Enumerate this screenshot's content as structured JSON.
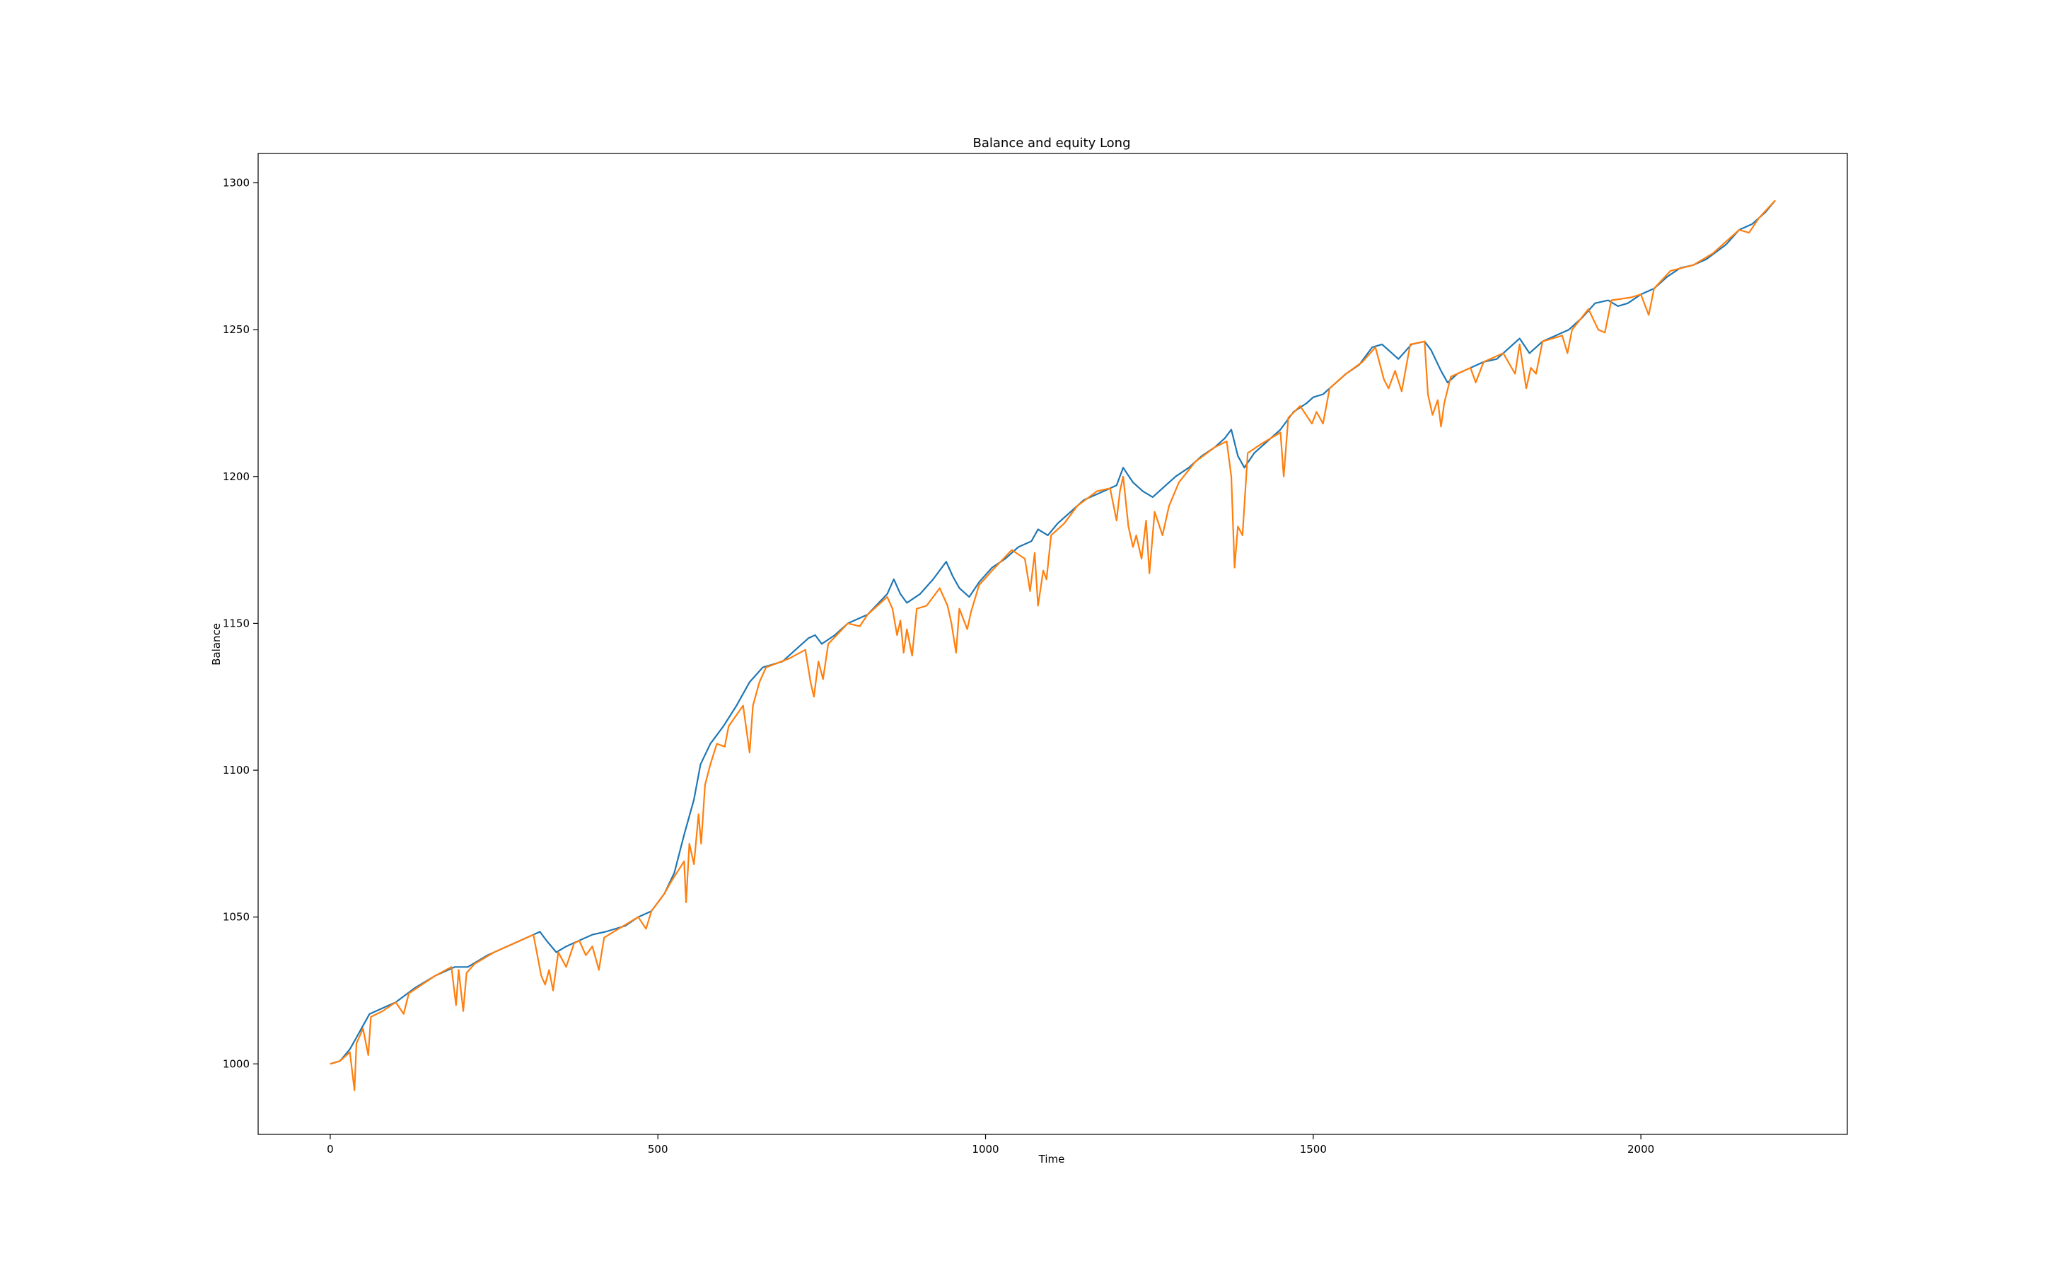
{
  "chart_data": {
    "type": "line",
    "title": "Balance and equity Long",
    "xlabel": "Time",
    "ylabel": "Balance",
    "xlim": [
      -110,
      2315
    ],
    "ylim": [
      976,
      1310
    ],
    "x_ticks": [
      0,
      500,
      1000,
      1500,
      2000
    ],
    "y_ticks": [
      1000,
      1050,
      1100,
      1150,
      1200,
      1250,
      1300
    ],
    "grid": false,
    "legend": "none",
    "series": [
      {
        "color": "#1f77b4",
        "points": [
          [
            0,
            1000
          ],
          [
            15,
            1001
          ],
          [
            30,
            1005
          ],
          [
            40,
            1009
          ],
          [
            60,
            1017
          ],
          [
            100,
            1021
          ],
          [
            130,
            1026
          ],
          [
            160,
            1030
          ],
          [
            190,
            1033
          ],
          [
            210,
            1033
          ],
          [
            240,
            1037
          ],
          [
            270,
            1040
          ],
          [
            300,
            1043
          ],
          [
            320,
            1045
          ],
          [
            330,
            1042
          ],
          [
            345,
            1038
          ],
          [
            360,
            1040
          ],
          [
            380,
            1042
          ],
          [
            400,
            1044
          ],
          [
            420,
            1045
          ],
          [
            450,
            1047
          ],
          [
            470,
            1050
          ],
          [
            490,
            1052
          ],
          [
            510,
            1058
          ],
          [
            525,
            1065
          ],
          [
            540,
            1078
          ],
          [
            555,
            1090
          ],
          [
            565,
            1102
          ],
          [
            580,
            1109
          ],
          [
            600,
            1115
          ],
          [
            620,
            1122
          ],
          [
            640,
            1130
          ],
          [
            660,
            1135
          ],
          [
            690,
            1137
          ],
          [
            710,
            1141
          ],
          [
            730,
            1145
          ],
          [
            740,
            1146
          ],
          [
            750,
            1143
          ],
          [
            770,
            1146
          ],
          [
            790,
            1150
          ],
          [
            820,
            1153
          ],
          [
            850,
            1160
          ],
          [
            860,
            1165
          ],
          [
            870,
            1160
          ],
          [
            880,
            1157
          ],
          [
            900,
            1160
          ],
          [
            920,
            1165
          ],
          [
            940,
            1171
          ],
          [
            950,
            1166
          ],
          [
            960,
            1162
          ],
          [
            975,
            1159
          ],
          [
            990,
            1164
          ],
          [
            1010,
            1169
          ],
          [
            1030,
            1172
          ],
          [
            1050,
            1176
          ],
          [
            1070,
            1178
          ],
          [
            1080,
            1182
          ],
          [
            1095,
            1180
          ],
          [
            1110,
            1184
          ],
          [
            1130,
            1188
          ],
          [
            1150,
            1192
          ],
          [
            1180,
            1195
          ],
          [
            1200,
            1197
          ],
          [
            1210,
            1203
          ],
          [
            1225,
            1198
          ],
          [
            1240,
            1195
          ],
          [
            1255,
            1193
          ],
          [
            1270,
            1196
          ],
          [
            1290,
            1200
          ],
          [
            1310,
            1203
          ],
          [
            1330,
            1207
          ],
          [
            1350,
            1210
          ],
          [
            1365,
            1213
          ],
          [
            1375,
            1216
          ],
          [
            1385,
            1207
          ],
          [
            1395,
            1203
          ],
          [
            1410,
            1208
          ],
          [
            1430,
            1212
          ],
          [
            1450,
            1216
          ],
          [
            1470,
            1222
          ],
          [
            1490,
            1225
          ],
          [
            1500,
            1227
          ],
          [
            1515,
            1228
          ],
          [
            1530,
            1231
          ],
          [
            1550,
            1235
          ],
          [
            1570,
            1238
          ],
          [
            1590,
            1244
          ],
          [
            1605,
            1245
          ],
          [
            1615,
            1243
          ],
          [
            1630,
            1240
          ],
          [
            1650,
            1245
          ],
          [
            1670,
            1246
          ],
          [
            1680,
            1243
          ],
          [
            1695,
            1236
          ],
          [
            1705,
            1232
          ],
          [
            1720,
            1235
          ],
          [
            1740,
            1237
          ],
          [
            1760,
            1239
          ],
          [
            1780,
            1240
          ],
          [
            1800,
            1244
          ],
          [
            1815,
            1247
          ],
          [
            1830,
            1242
          ],
          [
            1850,
            1246
          ],
          [
            1870,
            1248
          ],
          [
            1890,
            1250
          ],
          [
            1910,
            1254
          ],
          [
            1930,
            1259
          ],
          [
            1950,
            1260
          ],
          [
            1965,
            1258
          ],
          [
            1980,
            1259
          ],
          [
            2000,
            1262
          ],
          [
            2020,
            1264
          ],
          [
            2040,
            1268
          ],
          [
            2060,
            1271
          ],
          [
            2080,
            1272
          ],
          [
            2100,
            1274
          ],
          [
            2130,
            1279
          ],
          [
            2150,
            1284
          ],
          [
            2170,
            1286
          ],
          [
            2190,
            1290
          ],
          [
            2205,
            1294
          ]
        ]
      },
      {
        "color": "#ff7f0e",
        "points": [
          [
            0,
            1000
          ],
          [
            15,
            1001
          ],
          [
            30,
            1004
          ],
          [
            37,
            991
          ],
          [
            40,
            1007
          ],
          [
            50,
            1012
          ],
          [
            58,
            1003
          ],
          [
            62,
            1016
          ],
          [
            80,
            1018
          ],
          [
            100,
            1021
          ],
          [
            112,
            1017
          ],
          [
            120,
            1024
          ],
          [
            140,
            1027
          ],
          [
            160,
            1030
          ],
          [
            185,
            1033
          ],
          [
            192,
            1020
          ],
          [
            196,
            1032
          ],
          [
            203,
            1018
          ],
          [
            208,
            1031
          ],
          [
            220,
            1034
          ],
          [
            250,
            1038
          ],
          [
            280,
            1041
          ],
          [
            310,
            1044
          ],
          [
            322,
            1030
          ],
          [
            328,
            1027
          ],
          [
            334,
            1032
          ],
          [
            340,
            1025
          ],
          [
            348,
            1038
          ],
          [
            360,
            1033
          ],
          [
            372,
            1041
          ],
          [
            380,
            1042
          ],
          [
            390,
            1037
          ],
          [
            400,
            1040
          ],
          [
            410,
            1032
          ],
          [
            418,
            1043
          ],
          [
            440,
            1046
          ],
          [
            470,
            1050
          ],
          [
            482,
            1046
          ],
          [
            490,
            1052
          ],
          [
            510,
            1058
          ],
          [
            520,
            1062
          ],
          [
            540,
            1069
          ],
          [
            543,
            1055
          ],
          [
            548,
            1075
          ],
          [
            555,
            1068
          ],
          [
            562,
            1085
          ],
          [
            566,
            1075
          ],
          [
            572,
            1095
          ],
          [
            580,
            1102
          ],
          [
            590,
            1109
          ],
          [
            602,
            1108
          ],
          [
            608,
            1115
          ],
          [
            630,
            1122
          ],
          [
            640,
            1106
          ],
          [
            645,
            1122
          ],
          [
            655,
            1130
          ],
          [
            665,
            1135
          ],
          [
            700,
            1138
          ],
          [
            725,
            1141
          ],
          [
            733,
            1130
          ],
          [
            738,
            1125
          ],
          [
            745,
            1137
          ],
          [
            752,
            1131
          ],
          [
            760,
            1143
          ],
          [
            790,
            1150
          ],
          [
            808,
            1149
          ],
          [
            820,
            1153
          ],
          [
            850,
            1159
          ],
          [
            858,
            1155
          ],
          [
            865,
            1146
          ],
          [
            870,
            1151
          ],
          [
            875,
            1140
          ],
          [
            880,
            1148
          ],
          [
            888,
            1139
          ],
          [
            895,
            1155
          ],
          [
            910,
            1156
          ],
          [
            930,
            1162
          ],
          [
            942,
            1156
          ],
          [
            948,
            1150
          ],
          [
            955,
            1140
          ],
          [
            960,
            1155
          ],
          [
            972,
            1148
          ],
          [
            978,
            1154
          ],
          [
            990,
            1163
          ],
          [
            1010,
            1168
          ],
          [
            1040,
            1175
          ],
          [
            1060,
            1172
          ],
          [
            1068,
            1161
          ],
          [
            1075,
            1174
          ],
          [
            1080,
            1156
          ],
          [
            1088,
            1168
          ],
          [
            1093,
            1165
          ],
          [
            1100,
            1180
          ],
          [
            1120,
            1184
          ],
          [
            1140,
            1190
          ],
          [
            1170,
            1195
          ],
          [
            1190,
            1196
          ],
          [
            1200,
            1185
          ],
          [
            1205,
            1195
          ],
          [
            1210,
            1200
          ],
          [
            1218,
            1183
          ],
          [
            1225,
            1176
          ],
          [
            1230,
            1180
          ],
          [
            1238,
            1172
          ],
          [
            1245,
            1185
          ],
          [
            1250,
            1167
          ],
          [
            1258,
            1188
          ],
          [
            1270,
            1180
          ],
          [
            1280,
            1190
          ],
          [
            1295,
            1198
          ],
          [
            1320,
            1205
          ],
          [
            1350,
            1210
          ],
          [
            1368,
            1212
          ],
          [
            1375,
            1200
          ],
          [
            1380,
            1169
          ],
          [
            1385,
            1183
          ],
          [
            1392,
            1180
          ],
          [
            1400,
            1208
          ],
          [
            1420,
            1211
          ],
          [
            1450,
            1215
          ],
          [
            1455,
            1200
          ],
          [
            1462,
            1220
          ],
          [
            1480,
            1224
          ],
          [
            1498,
            1218
          ],
          [
            1505,
            1222
          ],
          [
            1515,
            1218
          ],
          [
            1525,
            1230
          ],
          [
            1550,
            1235
          ],
          [
            1575,
            1239
          ],
          [
            1595,
            1244
          ],
          [
            1608,
            1233
          ],
          [
            1615,
            1230
          ],
          [
            1625,
            1236
          ],
          [
            1635,
            1229
          ],
          [
            1648,
            1245
          ],
          [
            1670,
            1246
          ],
          [
            1675,
            1228
          ],
          [
            1682,
            1221
          ],
          [
            1690,
            1226
          ],
          [
            1695,
            1217
          ],
          [
            1700,
            1225
          ],
          [
            1710,
            1234
          ],
          [
            1740,
            1237
          ],
          [
            1748,
            1232
          ],
          [
            1760,
            1239
          ],
          [
            1790,
            1242
          ],
          [
            1808,
            1235
          ],
          [
            1815,
            1245
          ],
          [
            1825,
            1230
          ],
          [
            1832,
            1237
          ],
          [
            1840,
            1235
          ],
          [
            1850,
            1246
          ],
          [
            1880,
            1248
          ],
          [
            1888,
            1242
          ],
          [
            1895,
            1250
          ],
          [
            1920,
            1257
          ],
          [
            1935,
            1250
          ],
          [
            1945,
            1249
          ],
          [
            1955,
            1260
          ],
          [
            1985,
            1261
          ],
          [
            2000,
            1262
          ],
          [
            2012,
            1255
          ],
          [
            2020,
            1264
          ],
          [
            2045,
            1270
          ],
          [
            2080,
            1272
          ],
          [
            2110,
            1276
          ],
          [
            2150,
            1284
          ],
          [
            2165,
            1283
          ],
          [
            2180,
            1288
          ],
          [
            2205,
            1294
          ]
        ]
      }
    ]
  }
}
